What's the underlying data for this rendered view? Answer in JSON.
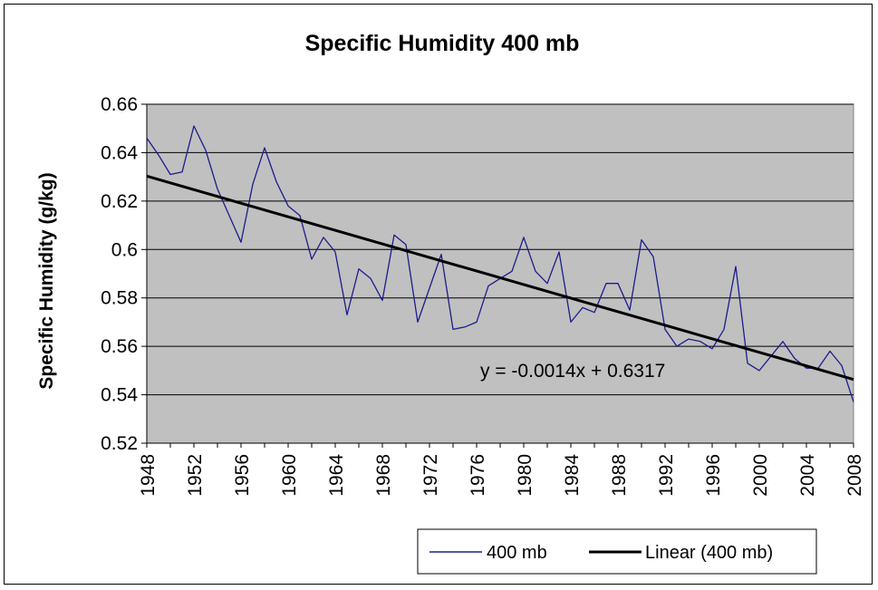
{
  "chart_data": {
    "type": "line",
    "title": "Specific Humidity 400 mb",
    "xlabel": "",
    "ylabel": "Specific Humidity (g/kg)",
    "xlim": [
      1948,
      2008
    ],
    "ylim": [
      0.52,
      0.66
    ],
    "y_ticks": [
      "0.66",
      "0.64",
      "0.62",
      "0.6",
      "0.58",
      "0.56",
      "0.54",
      "0.52"
    ],
    "y_tick_values": [
      0.66,
      0.64,
      0.62,
      0.6,
      0.58,
      0.56,
      0.54,
      0.52
    ],
    "x_ticks": [
      "1948",
      "1952",
      "1956",
      "1960",
      "1964",
      "1968",
      "1972",
      "1976",
      "1980",
      "1984",
      "1988",
      "1992",
      "1996",
      "2000",
      "2004",
      "2008"
    ],
    "grid": "horizontal",
    "legend_position": "bottom-right",
    "plot_background": "#c0c0c0",
    "series": [
      {
        "name": "400 mb",
        "color": "#1c1c8c",
        "x": [
          1948,
          1949,
          1950,
          1951,
          1952,
          1953,
          1954,
          1955,
          1956,
          1957,
          1958,
          1959,
          1960,
          1961,
          1962,
          1963,
          1964,
          1965,
          1966,
          1967,
          1968,
          1969,
          1970,
          1971,
          1972,
          1973,
          1974,
          1975,
          1976,
          1977,
          1978,
          1979,
          1980,
          1981,
          1982,
          1983,
          1984,
          1985,
          1986,
          1987,
          1988,
          1989,
          1990,
          1991,
          1992,
          1993,
          1994,
          1995,
          1996,
          1997,
          1998,
          1999,
          2000,
          2001,
          2002,
          2003,
          2004,
          2005,
          2006,
          2007,
          2008
        ],
        "values": [
          0.646,
          0.639,
          0.631,
          0.632,
          0.651,
          0.641,
          0.625,
          0.614,
          0.603,
          0.627,
          0.642,
          0.628,
          0.618,
          0.614,
          0.596,
          0.605,
          0.599,
          0.573,
          0.592,
          0.588,
          0.579,
          0.606,
          0.602,
          0.57,
          0.584,
          0.598,
          0.567,
          0.568,
          0.57,
          0.585,
          0.588,
          0.591,
          0.605,
          0.591,
          0.586,
          0.599,
          0.57,
          0.576,
          0.574,
          0.586,
          0.586,
          0.575,
          0.604,
          0.597,
          0.567,
          0.56,
          0.563,
          0.562,
          0.559,
          0.567,
          0.593,
          0.553,
          0.55,
          0.556,
          0.562,
          0.555,
          0.551,
          0.551,
          0.558,
          0.552,
          0.537
        ]
      },
      {
        "name": "Linear (400 mb)",
        "color": "#000000",
        "x": [
          1948,
          2008
        ],
        "values": [
          0.6303,
          0.5463
        ]
      }
    ],
    "trendline_equation": "y = -0.0014x + 0.6317"
  }
}
